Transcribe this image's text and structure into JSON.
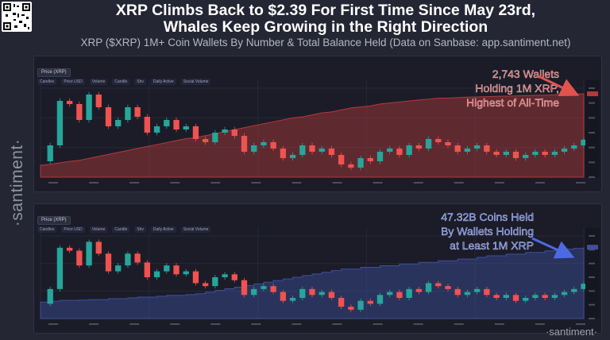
{
  "header": {
    "title_line1": "XRP Climbs Back to $2.39 For First Time Since May 23rd,",
    "title_line2": "Whales Keep Growing in the Right Direction",
    "subtitle": "XRP ($XRP) 1M+ Coin Wallets By Number & Total Balance Held (Data on Sanbase: app.santiment.net)"
  },
  "watermarks": {
    "side": "·santiment·",
    "bottom": "·santiment·"
  },
  "toolbar": {
    "price_label": "Price (XRP)",
    "items": [
      "Candles",
      "Price USD",
      "Volume",
      "Candle",
      "Shv",
      "Daily Active",
      "Social Volume"
    ]
  },
  "annotations": {
    "wallets": [
      "2,743 Wallets",
      "Holding 1M XRP,",
      "Highest of All-Time"
    ],
    "coins": [
      "47.32B Coins Held",
      "By Wallets Holding",
      "at Least 1M XRP"
    ]
  },
  "colors": {
    "background": "#252634",
    "panel": "#1b1c28",
    "candle_up": "#26a69a",
    "candle_down": "#ef5350",
    "wallet_area": "#b33a3a",
    "balance_area": "#3f4f9c",
    "annotation_red": "#e3524d",
    "annotation_blue": "#4d6ae3"
  },
  "chart_data": [
    {
      "type": "line",
      "series": [
        {
          "values": [
            2.05,
            2.3,
            3.0,
            2.95,
            2.7,
            3.1,
            2.9,
            2.6,
            2.7,
            2.9,
            2.75,
            2.5,
            2.6,
            2.7,
            2.55,
            2.6,
            2.4,
            2.35,
            2.5,
            2.55,
            2.45,
            2.2,
            2.3,
            2.35,
            2.25,
            2.1,
            2.15,
            2.3,
            2.2,
            2.25,
            2.15,
            2.0,
            1.95,
            2.1,
            2.05,
            2.2,
            2.25,
            2.15,
            2.3,
            2.25,
            2.4,
            2.35,
            2.3,
            2.2,
            2.25,
            2.3,
            2.2,
            2.15,
            2.2,
            2.1,
            2.15,
            2.2,
            2.15,
            2.2,
            2.25,
            2.3,
            2.39
          ]
        },
        {
          "values": [
            2020,
            2030,
            2045,
            2060,
            2070,
            2090,
            2110,
            2130,
            2150,
            2170,
            2190,
            2210,
            2230,
            2250,
            2270,
            2290,
            2300,
            2320,
            2340,
            2360,
            2380,
            2400,
            2420,
            2440,
            2460,
            2480,
            2500,
            2510,
            2530,
            2550,
            2560,
            2580,
            2600,
            2610,
            2620,
            2640,
            2650,
            2660,
            2670,
            2680,
            2690,
            2700,
            2700,
            2705,
            2710,
            2712,
            2715,
            2718,
            2720,
            2722,
            2725,
            2728,
            2730,
            2733,
            2736,
            2740,
            2743
          ]
        }
      ]
    },
    {
      "type": "line",
      "series": [
        {
          "values": [
            2.05,
            2.3,
            3.0,
            2.95,
            2.7,
            3.1,
            2.9,
            2.6,
            2.7,
            2.9,
            2.75,
            2.5,
            2.6,
            2.7,
            2.55,
            2.6,
            2.4,
            2.35,
            2.5,
            2.55,
            2.45,
            2.2,
            2.3,
            2.35,
            2.25,
            2.1,
            2.15,
            2.3,
            2.2,
            2.25,
            2.15,
            2.0,
            1.95,
            2.1,
            2.05,
            2.2,
            2.25,
            2.15,
            2.3,
            2.25,
            2.4,
            2.35,
            2.3,
            2.2,
            2.25,
            2.3,
            2.2,
            2.15,
            2.2,
            2.1,
            2.15,
            2.2,
            2.15,
            2.2,
            2.25,
            2.3,
            2.39
          ]
        },
        {
          "values": [
            44.0,
            44.05,
            44.1,
            44.1,
            44.12,
            44.15,
            44.15,
            44.2,
            44.2,
            44.25,
            44.3,
            44.3,
            44.35,
            44.4,
            44.4,
            44.45,
            44.5,
            44.6,
            44.7,
            44.8,
            44.9,
            45.0,
            45.1,
            45.2,
            45.3,
            45.4,
            45.5,
            45.6,
            45.7,
            45.8,
            45.9,
            46.0,
            46.0,
            46.1,
            46.1,
            46.2,
            46.2,
            46.3,
            46.3,
            46.4,
            46.4,
            46.5,
            46.5,
            46.6,
            46.6,
            46.7,
            46.8,
            46.8,
            46.9,
            46.9,
            47.0,
            47.0,
            47.1,
            47.1,
            47.2,
            47.25,
            47.32
          ]
        }
      ]
    }
  ]
}
